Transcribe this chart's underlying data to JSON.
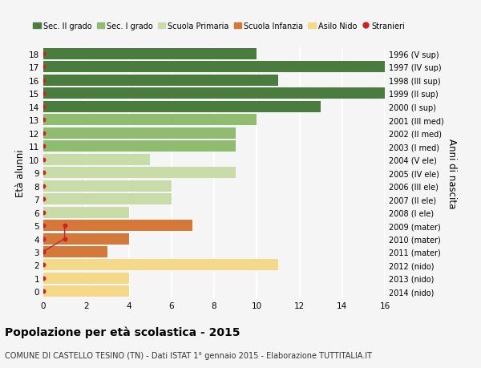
{
  "ages": [
    18,
    17,
    16,
    15,
    14,
    13,
    12,
    11,
    10,
    9,
    8,
    7,
    6,
    5,
    4,
    3,
    2,
    1,
    0
  ],
  "right_labels": [
    "1996 (V sup)",
    "1997 (IV sup)",
    "1998 (III sup)",
    "1999 (II sup)",
    "2000 (I sup)",
    "2001 (III med)",
    "2002 (II med)",
    "2003 (I med)",
    "2004 (V ele)",
    "2005 (IV ele)",
    "2006 (III ele)",
    "2007 (II ele)",
    "2008 (I ele)",
    "2009 (mater)",
    "2010 (mater)",
    "2011 (mater)",
    "2012 (nido)",
    "2013 (nido)",
    "2014 (nido)"
  ],
  "bar_values": [
    10,
    16,
    11,
    16,
    13,
    10,
    9,
    9,
    5,
    9,
    6,
    6,
    4,
    7,
    4,
    3,
    11,
    4,
    4
  ],
  "bar_colors": [
    "#4a7c3f",
    "#4a7c3f",
    "#4a7c3f",
    "#4a7c3f",
    "#4a7c3f",
    "#8fbc6e",
    "#8fbc6e",
    "#8fbc6e",
    "#c8dba8",
    "#c8dba8",
    "#c8dba8",
    "#c8dba8",
    "#c8dba8",
    "#d4793a",
    "#d4793a",
    "#d4793a",
    "#f5d98b",
    "#f5d98b",
    "#f5d98b"
  ],
  "stranieri_line_ages": [
    5,
    4,
    3
  ],
  "stranieri_line_x": [
    1,
    1,
    0
  ],
  "legend_labels": [
    "Sec. II grado",
    "Sec. I grado",
    "Scuola Primaria",
    "Scuola Infanzia",
    "Asilo Nido",
    "Stranieri"
  ],
  "legend_colors": [
    "#4a7c3f",
    "#8fbc6e",
    "#c8dba8",
    "#d4793a",
    "#f5d98b",
    "#cc2222"
  ],
  "ylabel": "Età alunni",
  "ylabel_right": "Anni di nascita",
  "title": "Popolazione per età scolastica - 2015",
  "subtitle": "COMUNE DI CASTELLO TESINO (TN) - Dati ISTAT 1° gennaio 2015 - Elaborazione TUTTITALIA.IT",
  "xlim": [
    0,
    16
  ],
  "xticks": [
    0,
    2,
    4,
    6,
    8,
    10,
    12,
    14,
    16
  ],
  "background_color": "#f5f5f5",
  "grid_color": "#ffffff",
  "dot_color": "#cc2222",
  "dot_size": 18,
  "bar_height": 0.85
}
